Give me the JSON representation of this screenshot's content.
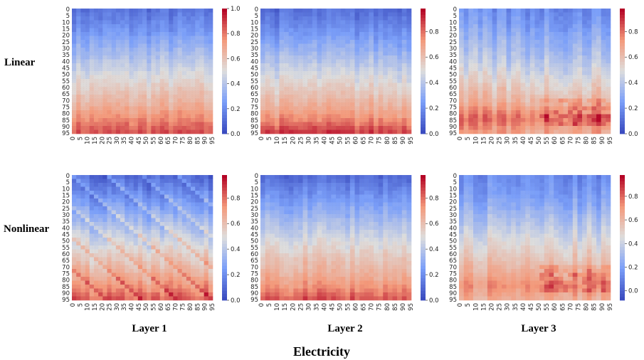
{
  "title": "Electricity",
  "row_labels": [
    "Linear",
    "Nonlinear"
  ],
  "col_labels": [
    "Layer 1",
    "Layer 2",
    "Layer 3"
  ],
  "chart_data": [
    {
      "type": "heatmap",
      "row": "Linear",
      "col": "Layer 1",
      "size": 96,
      "ticks": [
        0,
        5,
        10,
        15,
        20,
        25,
        30,
        35,
        40,
        45,
        50,
        55,
        60,
        65,
        70,
        75,
        80,
        85,
        90,
        95
      ],
      "vmin": 0,
      "vmax": 1.0,
      "cbar_ticks": [
        "0.0",
        "0.2",
        "0.4",
        "0.6",
        "0.8",
        "1.0"
      ],
      "row_profile": [
        0.12,
        0.18,
        0.26,
        0.34,
        0.42,
        0.5,
        0.58,
        0.66,
        0.76,
        0.86
      ],
      "pattern": "vertical-streaks"
    },
    {
      "type": "heatmap",
      "row": "Linear",
      "col": "Layer 2",
      "size": 96,
      "ticks": [
        0,
        5,
        10,
        15,
        20,
        25,
        30,
        35,
        40,
        45,
        50,
        55,
        60,
        65,
        70,
        75,
        80,
        85,
        90,
        95
      ],
      "vmin": 0,
      "vmax": 0.98,
      "cbar_ticks": [
        "0.0",
        "0.2",
        "0.4",
        "0.6",
        "0.8"
      ],
      "row_profile": [
        0.1,
        0.16,
        0.24,
        0.32,
        0.4,
        0.48,
        0.56,
        0.64,
        0.74,
        0.88
      ],
      "pattern": "vertical-streaks"
    },
    {
      "type": "heatmap",
      "row": "Linear",
      "col": "Layer 3",
      "size": 96,
      "ticks": [
        0,
        5,
        10,
        15,
        20,
        25,
        30,
        35,
        40,
        45,
        50,
        55,
        60,
        65,
        70,
        75,
        80,
        85,
        90,
        95
      ],
      "vmin": 0,
      "vmax": 0.98,
      "cbar_ticks": [
        "0.0",
        "0.2",
        "0.4",
        "0.6",
        "0.8"
      ],
      "row_profile": [
        0.2,
        0.24,
        0.3,
        0.36,
        0.42,
        0.5,
        0.58,
        0.66,
        0.8,
        0.7
      ],
      "pattern": "blotchy"
    },
    {
      "type": "heatmap",
      "row": "Nonlinear",
      "col": "Layer 1",
      "size": 96,
      "ticks": [
        0,
        5,
        10,
        15,
        20,
        25,
        30,
        35,
        40,
        45,
        50,
        55,
        60,
        65,
        70,
        75,
        80,
        85,
        90,
        95
      ],
      "vmin": 0,
      "vmax": 0.98,
      "cbar_ticks": [
        "0.0",
        "0.2",
        "0.4",
        "0.6",
        "0.8"
      ],
      "row_profile": [
        0.14,
        0.2,
        0.28,
        0.36,
        0.44,
        0.52,
        0.6,
        0.68,
        0.76,
        0.86
      ],
      "pattern": "diagonal"
    },
    {
      "type": "heatmap",
      "row": "Nonlinear",
      "col": "Layer 2",
      "size": 96,
      "ticks": [
        0,
        5,
        10,
        15,
        20,
        25,
        30,
        35,
        40,
        45,
        50,
        55,
        60,
        65,
        70,
        75,
        80,
        85,
        90,
        95
      ],
      "vmin": 0,
      "vmax": 0.98,
      "cbar_ticks": [
        "0.0",
        "0.2",
        "0.4",
        "0.6",
        "0.8"
      ],
      "row_profile": [
        0.1,
        0.18,
        0.26,
        0.34,
        0.42,
        0.5,
        0.58,
        0.64,
        0.72,
        0.84
      ],
      "pattern": "vertical-streaks"
    },
    {
      "type": "heatmap",
      "row": "Nonlinear",
      "col": "Layer 3",
      "size": 96,
      "ticks": [
        0,
        5,
        10,
        15,
        20,
        25,
        30,
        35,
        40,
        45,
        50,
        55,
        60,
        65,
        70,
        75,
        80,
        85,
        90,
        95
      ],
      "vmin": -0.08,
      "vmax": 0.98,
      "cbar_ticks": [
        "0.0",
        "0.2",
        "0.4",
        "0.6",
        "0.8"
      ],
      "row_profile": [
        0.12,
        0.16,
        0.22,
        0.3,
        0.38,
        0.46,
        0.54,
        0.62,
        0.72,
        0.64
      ],
      "pattern": "blotchy"
    }
  ]
}
